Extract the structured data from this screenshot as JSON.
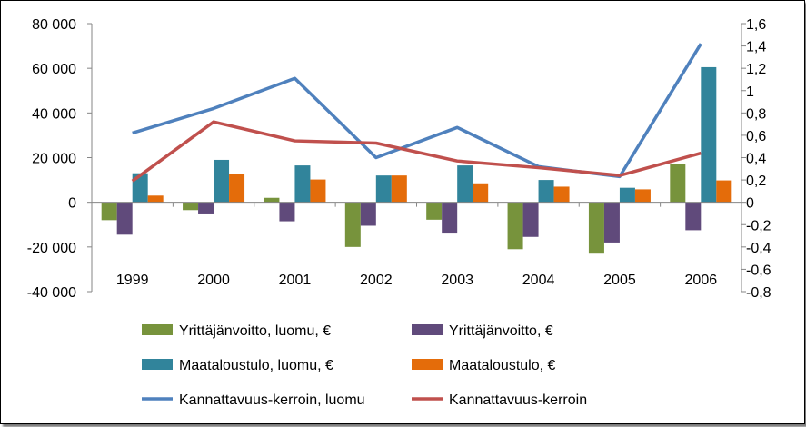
{
  "chart_data": {
    "type": "bar+line",
    "title": "",
    "categories": [
      "1999",
      "2000",
      "2001",
      "2002",
      "2003",
      "2004",
      "2005",
      "2006"
    ],
    "left_axis": {
      "ylim": [
        -40000,
        80000
      ],
      "ticks": [
        -40000,
        -20000,
        0,
        20000,
        40000,
        60000,
        80000
      ],
      "tick_labels": [
        "-40 000",
        "-20 000",
        "0",
        "20 000",
        "40 000",
        "60 000",
        "80 000"
      ]
    },
    "right_axis": {
      "ylim": [
        -0.8,
        1.6
      ],
      "ticks": [
        -0.8,
        -0.6,
        -0.4,
        -0.2,
        0,
        0.2,
        0.4,
        0.6,
        0.8,
        1,
        1.2,
        1.4,
        1.6
      ],
      "tick_labels": [
        "-0,8",
        "-0,6",
        "-0,4",
        "-0,2",
        "0",
        "0,2",
        "0,4",
        "0,6",
        "0,8",
        "1",
        "1,2",
        "1,4",
        "1,6"
      ]
    },
    "bar_series": [
      {
        "name": "Yrittäjänvoitto, luomu, €",
        "color": "#77933C",
        "values": [
          -8000,
          -3500,
          2000,
          -20000,
          -7800,
          -21000,
          -23000,
          17000
        ]
      },
      {
        "name": "Yrittäjänvoitto, €",
        "color": "#604A7B",
        "values": [
          -14500,
          -5000,
          -8500,
          -10500,
          -14000,
          -15500,
          -18000,
          -12500
        ]
      },
      {
        "name": "Maataloustulo, luomu, €",
        "color": "#31849B",
        "values": [
          13000,
          19000,
          16500,
          12000,
          16500,
          10000,
          6500,
          60500
        ]
      },
      {
        "name": "Maataloustulo, €",
        "color": "#E46C0A",
        "values": [
          3000,
          12800,
          10200,
          12000,
          8500,
          7000,
          5800,
          9800
        ]
      }
    ],
    "line_series": [
      {
        "name": "Kannattavuus-kerroin, luomu",
        "color": "#4F81BD",
        "axis": "right",
        "values": [
          0.62,
          0.84,
          1.11,
          0.4,
          0.67,
          0.32,
          0.23,
          1.42
        ]
      },
      {
        "name": "Kannattavuus-kerroin",
        "color": "#C0504D",
        "axis": "right",
        "values": [
          0.19,
          0.72,
          0.55,
          0.53,
          0.37,
          0.31,
          0.24,
          0.44
        ]
      }
    ],
    "legend_position": "bottom",
    "grid": false
  }
}
